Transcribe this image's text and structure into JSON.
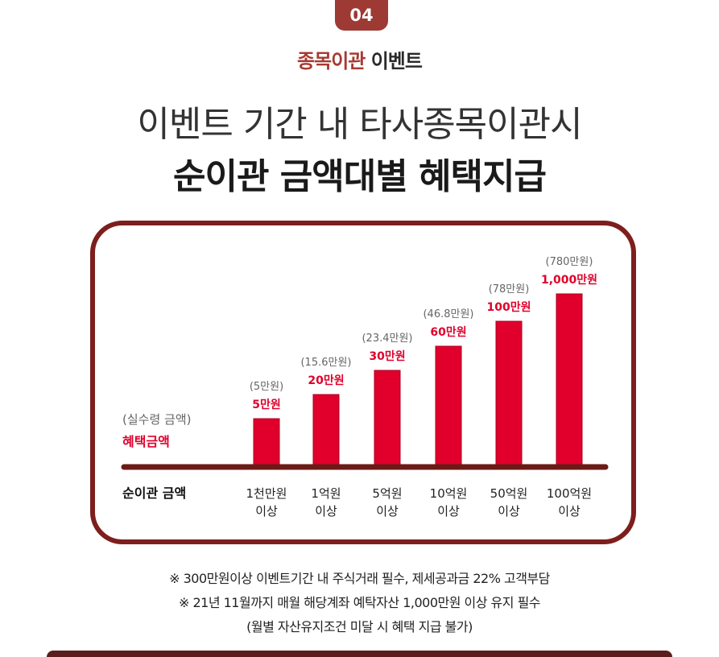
{
  "badge": "04",
  "event": {
    "accent": "종목이관",
    "rest": "이벤트"
  },
  "headline": {
    "line1": "이벤트 기간 내 타사종목이관시",
    "line2": "순이관 금액대별 혜택지급"
  },
  "chart_data": {
    "type": "bar",
    "categories": [
      [
        "1천만원",
        "이상"
      ],
      [
        "1억원",
        "이상"
      ],
      [
        "5억원",
        "이상"
      ],
      [
        "10억원",
        "이상"
      ],
      [
        "50억원",
        "이상"
      ],
      [
        "100억원",
        "이상"
      ]
    ],
    "values": [
      5,
      20,
      30,
      60,
      100,
      1000
    ],
    "benefit_labels": [
      "5만원",
      "20만원",
      "30만원",
      "60만원",
      "100만원",
      "1,000만원"
    ],
    "net_labels": [
      "(5만원)",
      "(15.6만원)",
      "(23.4만원)",
      "(46.8만원)",
      "(78만원)",
      "(780만원)"
    ],
    "legend_net": "(실수령 금액)",
    "legend_benefit": "혜택금액",
    "xlabel": "순이관 금액",
    "bar_color": "#e0002b",
    "axis_color": "#6b1a17",
    "benefit_color": "#e0002b",
    "net_color": "#666666"
  },
  "notes": [
    "※ 300만원이상 이벤트기간 내 주식거래 필수, 제세공과금 22% 고객부담",
    "※ 21년 11월까지 매월 해당계좌 예탁자산 1,000만원 이상 유지 필수",
    "(월별 자산유지조건 미달 시 혜택 지급 불가)"
  ]
}
